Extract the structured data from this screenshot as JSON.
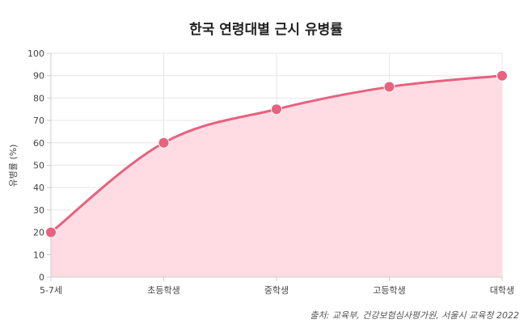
{
  "chart_data": {
    "type": "line",
    "title": "한국 연령대별 근시 유병률",
    "ylabel": "유병률 (%)",
    "xlabel": "",
    "categories": [
      "5-7세",
      "초등학생",
      "중학생",
      "고등학생",
      "대학생"
    ],
    "series": [
      {
        "values": [
          20,
          60,
          75,
          85,
          90
        ],
        "color": "#e8617f",
        "fill_color": "#ffdce4"
      }
    ],
    "ylim": [
      0,
      100
    ],
    "yticks": [
      0,
      10,
      20,
      30,
      40,
      50,
      60,
      70,
      80,
      90,
      100
    ],
    "grid": true,
    "area_fill": true,
    "source": "출처: 교육부, 건강보험심사평가원, 서울시 교육청 2022"
  }
}
